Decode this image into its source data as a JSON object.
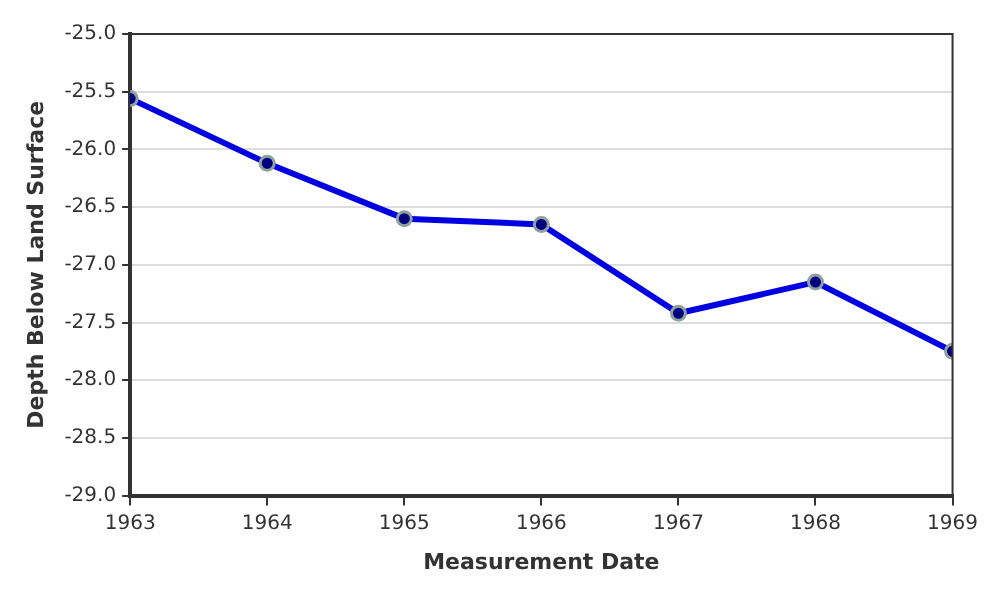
{
  "chart_data": {
    "type": "line",
    "xlabel": "Measurement Date",
    "ylabel": "Depth Below Land Surface",
    "x": [
      1963,
      1964,
      1965,
      1966,
      1967,
      1968,
      1969
    ],
    "series": [
      {
        "color": "#0000e0",
        "values": [
          -25.56,
          -26.12,
          -26.6,
          -26.65,
          -27.42,
          -27.15,
          -27.75
        ]
      }
    ],
    "xlim": [
      1963,
      1969
    ],
    "xticks": [
      1963,
      1964,
      1965,
      1966,
      1967,
      1968,
      1969
    ],
    "ylim": [
      -29,
      -25
    ],
    "yticks": [
      {
        "value": -29,
        "label": "-29.0"
      },
      {
        "value": -28.5,
        "label": "-28.5"
      },
      {
        "value": -28,
        "label": "-28.0"
      },
      {
        "value": -27.5,
        "label": "-27.5"
      },
      {
        "value": -27,
        "label": "-27.0"
      },
      {
        "value": -26.5,
        "label": "-26.5"
      },
      {
        "value": -26,
        "label": "-26.0"
      },
      {
        "value": -25.5,
        "label": "-25.5"
      },
      {
        "value": -25,
        "label": "-25.0"
      }
    ],
    "grid": "y",
    "legend": false,
    "marker": "circle",
    "line_style": "solid"
  }
}
